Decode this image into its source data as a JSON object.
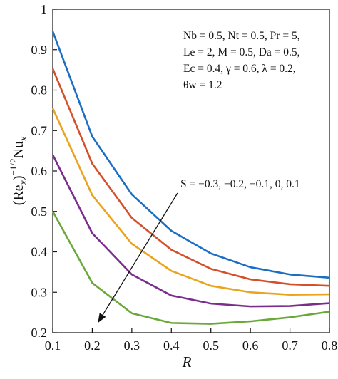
{
  "chart_data": {
    "type": "line",
    "x": [
      0.1,
      0.2,
      0.3,
      0.4,
      0.5,
      0.6,
      0.7,
      0.8
    ],
    "xlim": [
      0.1,
      0.8
    ],
    "ylim": [
      0.2,
      1.0
    ],
    "xticks": [
      "0.1",
      "0.2",
      "0.3",
      "0.4",
      "0.5",
      "0.6",
      "0.7",
      "0.8"
    ],
    "yticks": [
      "0.2",
      "0.3",
      "0.4",
      "0.5",
      "0.6",
      "0.7",
      "0.8",
      "0.9",
      "1"
    ],
    "xlabel": "R",
    "ylabel": "(Re_x)^-1/2 Nu_x",
    "grid": false,
    "series": [
      {
        "color": "#1a6fc4",
        "values": [
          0.945,
          0.685,
          0.542,
          0.452,
          0.396,
          0.362,
          0.344,
          0.336
        ]
      },
      {
        "color": "#d4502a",
        "values": [
          0.853,
          0.618,
          0.484,
          0.405,
          0.358,
          0.332,
          0.32,
          0.316
        ]
      },
      {
        "color": "#eaa41c",
        "values": [
          0.755,
          0.54,
          0.42,
          0.353,
          0.316,
          0.3,
          0.294,
          0.295
        ]
      },
      {
        "color": "#7b2d8e",
        "values": [
          0.64,
          0.446,
          0.344,
          0.292,
          0.272,
          0.265,
          0.266,
          0.273
        ]
      },
      {
        "color": "#6aa83a",
        "values": [
          0.5,
          0.323,
          0.248,
          0.224,
          0.222,
          0.228,
          0.238,
          0.252
        ]
      }
    ],
    "annotations": {
      "params": [
        "Nb = 0.5, Nt = 0.5, Pr = 5,",
        "Le = 2, M = 0.5, Da = 0.5,",
        "Ec = 0.4, γ = 0.6, λ = 0.2,",
        "θw = 1.2"
      ],
      "trend_label": "S = −0.3, −0.2, −0.1, 0, 0.1"
    }
  }
}
